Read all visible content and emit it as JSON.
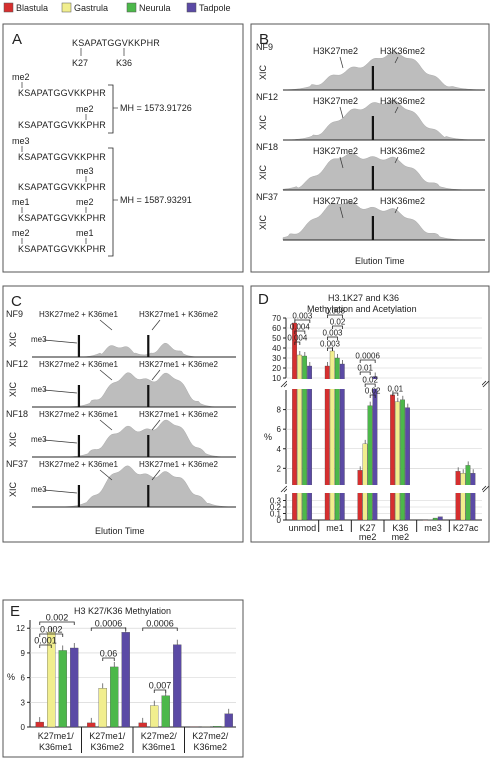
{
  "legend": {
    "items": [
      {
        "label": "Blastula",
        "color": "#d62f2f"
      },
      {
        "label": "Gastrula",
        "color": "#f1ee8e"
      },
      {
        "label": "Neurula",
        "color": "#4cb84a"
      },
      {
        "label": "Tadpole",
        "color": "#5b4aa5"
      }
    ]
  },
  "panelA": {
    "letter": "A",
    "peptide": "KSAPATGGVKKPHR",
    "k27": "K27",
    "k36": "K36",
    "group1": [
      {
        "mod": "me2",
        "seq": "KSAPATGGVKKPHR",
        "pos": "left"
      },
      {
        "mod": "me2",
        "seq": "KSAPATGGVKKPHR",
        "pos": "right"
      }
    ],
    "mh1": "MH = 1573.91726",
    "group2": [
      {
        "mod": "me3",
        "seq": "KSAPATGGVKKPHR",
        "pos": "left"
      },
      {
        "mod": "me3",
        "seq": "KSAPATGGVKKPHR",
        "pos": "right"
      },
      {
        "mod": "me1",
        "mod2": "me2",
        "seq": "KSAPATGGVKKPHR"
      },
      {
        "mod": "me2",
        "mod2": "me1",
        "seq": "KSAPATGGVKKPHR"
      }
    ],
    "mh2": "MH = 1587.93291"
  },
  "panelB": {
    "letter": "B",
    "rows": [
      {
        "stage": "NF9",
        "ylab": "XIC",
        "peak1": "H3K27me2",
        "peak2": "H3K36me2"
      },
      {
        "stage": "NF12",
        "ylab": "XIC",
        "peak1": "H3K27me2",
        "peak2": "H3K36me2"
      },
      {
        "stage": "NF18",
        "ylab": "XIC",
        "peak1": "H3K27me2",
        "peak2": "H3K36me2"
      },
      {
        "stage": "NF37",
        "ylab": "XIC",
        "peak1": "H3K27me2",
        "peak2": "H3K36me2"
      }
    ],
    "xlabel": "Elution Time"
  },
  "panelC": {
    "letter": "C",
    "rows": [
      {
        "stage": "NF9",
        "ylab": "XIC",
        "me3": "me3",
        "peak1": "H3K27me2 + K36me1",
        "peak2": "H3K27me1 + K36me2"
      },
      {
        "stage": "NF12",
        "ylab": "XIC",
        "me3": "me3",
        "peak1": "H3K27me2 + K36me1",
        "peak2": "H3K27me1 + K36me2"
      },
      {
        "stage": "NF18",
        "ylab": "XIC",
        "me3": "me3",
        "peak1": "H3K27me2 + K36me1",
        "peak2": "H3K27me1 + K36me2"
      },
      {
        "stage": "NF37",
        "ylab": "XIC",
        "me3": "me3",
        "peak1": "H3K27me2 + K36me1",
        "peak2": "H3K27me1 + K36me2"
      }
    ],
    "xlabel": "Elution Time"
  },
  "chart_data": [
    {
      "panel": "D",
      "type": "bar",
      "title": "H3.1K27 and K36",
      "subtitle": "Methylation and Acetylation",
      "ylabel": "%",
      "broken_axis": true,
      "segments": [
        {
          "range": [
            10,
            70
          ],
          "ticks": [
            "10",
            "20",
            "30",
            "40",
            "50",
            "60",
            "70"
          ]
        },
        {
          "range": [
            0.4,
            10
          ],
          "ticks": [
            "2",
            "4",
            "6",
            "8"
          ]
        },
        {
          "range": [
            0,
            0.4
          ],
          "ticks": [
            "0",
            "0.1",
            "0.2",
            "0.3"
          ]
        }
      ],
      "categories": [
        "unmod",
        "me1",
        "K27\nme2",
        "K36\nme2",
        "me3",
        "K27ac"
      ],
      "series": [
        {
          "name": "Blastula",
          "values": [
            65,
            22,
            1.8,
            9.5,
            0.0,
            1.7
          ]
        },
        {
          "name": "Gastrula",
          "values": [
            33,
            37,
            4.5,
            8.8,
            0.005,
            1.5
          ]
        },
        {
          "name": "Neurula",
          "values": [
            32,
            30,
            8.4,
            9.0,
            0.03,
            2.3
          ]
        },
        {
          "name": "Tadpole",
          "values": [
            22,
            24,
            11.5,
            8.2,
            0.05,
            1.5
          ]
        }
      ],
      "pvalues": [
        {
          "label": "0.003",
          "cat": 0,
          "from": 0,
          "to": 3
        },
        {
          "label": "0.004",
          "cat": 0,
          "from": 0,
          "to": 2
        },
        {
          "label": "0.004",
          "cat": 0,
          "from": 0,
          "to": 1
        },
        {
          "label": "0.008",
          "cat": 1,
          "from": 0,
          "to": 3
        },
        {
          "label": "0.02",
          "cat": 1,
          "from": 1,
          "to": 3
        },
        {
          "label": "0.003",
          "cat": 1,
          "from": 0,
          "to": 2
        },
        {
          "label": "0.003",
          "cat": 1,
          "from": 0,
          "to": 1
        },
        {
          "label": "0.0006",
          "cat": 2,
          "from": 0,
          "to": 3
        },
        {
          "label": "0.01",
          "cat": 2,
          "from": 0,
          "to": 2
        },
        {
          "label": "0.02",
          "cat": 2,
          "from": 1,
          "to": 3
        },
        {
          "label": "0.02",
          "cat": 2,
          "from": 2,
          "to": 3
        },
        {
          "label": "0.01",
          "cat": 3,
          "from": 0,
          "to": 1
        }
      ]
    },
    {
      "panel": "E",
      "type": "bar",
      "title": "H3 K27/K36 Methylation",
      "ylabel": "%",
      "ylim": [
        0,
        13
      ],
      "yticks": [
        "0",
        "3",
        "6",
        "9",
        "12"
      ],
      "categories": [
        "K27me1/\nK36me1",
        "K27me1/\nK36me2",
        "K27me2/\nK36me1",
        "K27me2/\nK36me2"
      ],
      "series": [
        {
          "name": "Blastula",
          "values": [
            0.6,
            0.5,
            0.5,
            0.05
          ]
        },
        {
          "name": "Gastrula",
          "values": [
            11.5,
            4.7,
            2.6,
            0.05
          ]
        },
        {
          "name": "Neurula",
          "values": [
            9.3,
            7.3,
            3.8,
            0.1
          ]
        },
        {
          "name": "Tadpole",
          "values": [
            9.6,
            11.5,
            10.0,
            1.6
          ]
        }
      ],
      "pvalues": [
        {
          "label": "0.002",
          "cat": 0,
          "from": 0,
          "to": 3
        },
        {
          "label": "0.002",
          "cat": 0,
          "from": 0,
          "to": 2
        },
        {
          "label": "0.001",
          "cat": 0,
          "from": 0,
          "to": 1
        },
        {
          "label": "0.0006",
          "cat": 1,
          "from": 0,
          "to": 3
        },
        {
          "label": "0.06",
          "cat": 1,
          "from": 1,
          "to": 2
        },
        {
          "label": "0.0006",
          "cat": 2,
          "from": 0,
          "to": 3
        },
        {
          "label": "0.007",
          "cat": 2,
          "from": 1,
          "to": 2
        }
      ]
    }
  ],
  "panelD": {
    "letter": "D"
  },
  "panelE": {
    "letter": "E"
  }
}
